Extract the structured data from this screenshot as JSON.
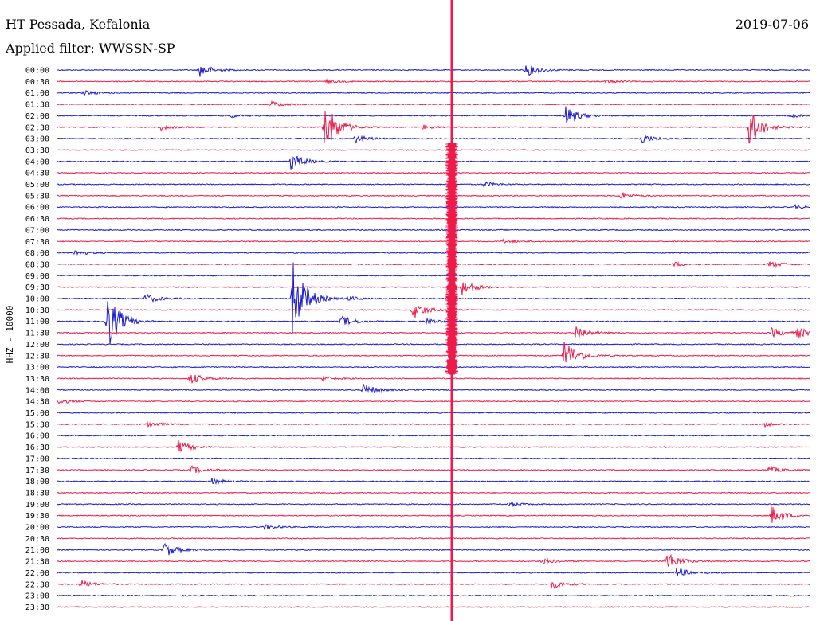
{
  "header": {
    "title": "HT Pessada, Kefalonia",
    "filter": "Applied filter: WWSSN-SP",
    "date": "2019-07-06"
  },
  "chart_data": {
    "type": "line",
    "ylabel": "HHZ - 10000",
    "row_labels": [
      "00:00",
      "00:30",
      "01:00",
      "01:30",
      "02:00",
      "02:30",
      "03:00",
      "03:30",
      "04:00",
      "04:30",
      "05:00",
      "05:30",
      "06:00",
      "06:30",
      "07:00",
      "07:30",
      "08:00",
      "08:30",
      "09:00",
      "09:30",
      "10:00",
      "10:30",
      "11:00",
      "11:30",
      "12:00",
      "12:30",
      "13:00",
      "13:30",
      "14:00",
      "14:30",
      "15:00",
      "15:30",
      "16:00",
      "16:30",
      "17:00",
      "17:30",
      "18:00",
      "18:30",
      "19:00",
      "19:30",
      "20:00",
      "20:30",
      "21:00",
      "21:30",
      "22:00",
      "22:30",
      "23:00",
      "23:30"
    ],
    "colors": [
      "#1a1ad0",
      "#ee1a4a"
    ],
    "events": [
      {
        "row": 0,
        "x": 250,
        "amp": 9
      },
      {
        "row": 0,
        "x": 660,
        "amp": 8
      },
      {
        "row": 1,
        "x": 410,
        "amp": 2
      },
      {
        "row": 1,
        "x": 760,
        "amp": 2
      },
      {
        "row": 2,
        "x": 105,
        "amp": 3
      },
      {
        "row": 3,
        "x": 340,
        "amp": 4
      },
      {
        "row": 4,
        "x": 710,
        "amp": 12
      },
      {
        "row": 4,
        "x": 290,
        "amp": 2
      },
      {
        "row": 4,
        "x": 990,
        "amp": 3
      },
      {
        "row": 5,
        "x": 407,
        "amp": 34
      },
      {
        "row": 5,
        "x": 940,
        "amp": 24
      },
      {
        "row": 5,
        "x": 200,
        "amp": 4
      },
      {
        "row": 5,
        "x": 530,
        "amp": 3
      },
      {
        "row": 6,
        "x": 445,
        "amp": 5
      },
      {
        "row": 6,
        "x": 805,
        "amp": 6
      },
      {
        "row": 8,
        "x": 365,
        "amp": 11
      },
      {
        "row": 10,
        "x": 606,
        "amp": 3
      },
      {
        "row": 11,
        "x": 778,
        "amp": 4
      },
      {
        "row": 12,
        "x": 997,
        "amp": 3
      },
      {
        "row": 15,
        "x": 630,
        "amp": 3
      },
      {
        "row": 16,
        "x": 93,
        "amp": 4
      },
      {
        "row": 17,
        "x": 965,
        "amp": 4
      },
      {
        "row": 17,
        "x": 845,
        "amp": 3
      },
      {
        "row": 19,
        "x": 580,
        "amp": 10
      },
      {
        "row": 20,
        "x": 367,
        "amp": 50
      },
      {
        "row": 20,
        "x": 182,
        "amp": 7
      },
      {
        "row": 20,
        "x": 436,
        "amp": 3
      },
      {
        "row": 21,
        "x": 518,
        "amp": 12
      },
      {
        "row": 22,
        "x": 133,
        "amp": 42
      },
      {
        "row": 22,
        "x": 428,
        "amp": 8
      },
      {
        "row": 22,
        "x": 535,
        "amp": 4
      },
      {
        "row": 23,
        "x": 722,
        "amp": 10
      },
      {
        "row": 23,
        "x": 968,
        "amp": 6
      },
      {
        "row": 23,
        "x": 1000,
        "amp": 7
      },
      {
        "row": 25,
        "x": 708,
        "amp": 22
      },
      {
        "row": 27,
        "x": 238,
        "amp": 8
      },
      {
        "row": 27,
        "x": 405,
        "amp": 3
      },
      {
        "row": 28,
        "x": 456,
        "amp": 8
      },
      {
        "row": 29,
        "x": 74,
        "amp": 3
      },
      {
        "row": 31,
        "x": 185,
        "amp": 4
      },
      {
        "row": 31,
        "x": 960,
        "amp": 3
      },
      {
        "row": 33,
        "x": 224,
        "amp": 8
      },
      {
        "row": 35,
        "x": 240,
        "amp": 5
      },
      {
        "row": 35,
        "x": 963,
        "amp": 5
      },
      {
        "row": 36,
        "x": 266,
        "amp": 4
      },
      {
        "row": 38,
        "x": 637,
        "amp": 3
      },
      {
        "row": 39,
        "x": 968,
        "amp": 12
      },
      {
        "row": 40,
        "x": 332,
        "amp": 3
      },
      {
        "row": 42,
        "x": 205,
        "amp": 10
      },
      {
        "row": 43,
        "x": 835,
        "amp": 14
      },
      {
        "row": 43,
        "x": 680,
        "amp": 4
      },
      {
        "row": 44,
        "x": 848,
        "amp": 7
      },
      {
        "row": 45,
        "x": 101,
        "amp": 5
      },
      {
        "row": 45,
        "x": 692,
        "amp": 6
      }
    ]
  }
}
